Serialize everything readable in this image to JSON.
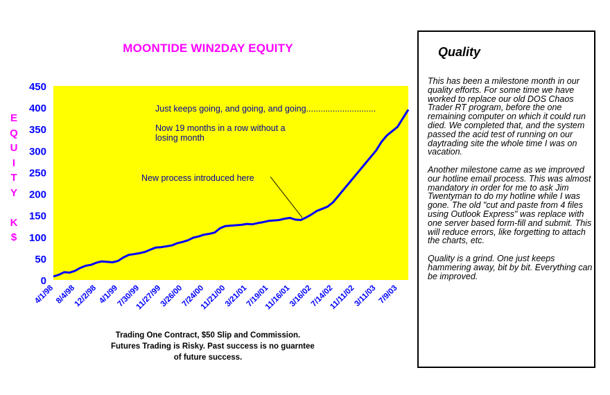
{
  "chart_data": {
    "type": "line",
    "title": "MOONTIDE WIN2DAY EQUITY",
    "ylabel": "EQUITY K$",
    "xlabel": "",
    "ylim": [
      0,
      450
    ],
    "yticks": [
      0,
      50,
      100,
      150,
      200,
      250,
      300,
      350,
      400,
      450
    ],
    "xticks": [
      "4/1/98",
      "8/4/98",
      "12/2/98",
      "4/1/99",
      "7/30/99",
      "11/27/99",
      "3/26/00",
      "7/24/00",
      "11/21/00",
      "3/21/01",
      "7/19/01",
      "11/16/01",
      "3/16/02",
      "7/14/02",
      "11/11/02",
      "3/11/03",
      "7/9/03"
    ],
    "grid": false,
    "plot_background": "#ffff00",
    "line_color": "#0000ff",
    "series": [
      {
        "x": [
          0,
          0.25,
          0.5,
          0.75,
          1,
          1.25,
          1.5,
          1.75,
          2,
          2.25,
          2.5,
          2.75,
          3,
          3.25,
          3.5,
          3.75,
          4,
          4.25,
          4.5,
          4.75,
          5,
          5.25,
          5.5,
          5.75,
          6,
          6.25,
          6.5,
          6.75,
          7,
          7.25,
          7.5,
          7.75,
          8,
          8.25,
          8.5,
          8.75,
          9,
          9.25,
          9.5,
          9.75,
          10,
          10.25,
          10.5,
          10.75,
          11,
          11.25,
          11.5,
          11.75,
          12,
          12.25,
          12.5,
          12.75,
          13,
          13.25,
          13.5,
          13.75,
          14,
          14.25,
          14.5,
          14.75,
          15,
          15.25,
          15.5,
          15.75,
          16,
          16.25,
          16.5
        ],
        "y": [
          8,
          12,
          18,
          17,
          21,
          28,
          33,
          35,
          40,
          43,
          42,
          41,
          44,
          52,
          58,
          60,
          62,
          65,
          70,
          75,
          76,
          78,
          80,
          85,
          88,
          92,
          98,
          101,
          105,
          107,
          110,
          120,
          125,
          126,
          127,
          128,
          130,
          129,
          132,
          134,
          137,
          138,
          139,
          142,
          144,
          140,
          139,
          145,
          152,
          160,
          165,
          170,
          180,
          195,
          210,
          225,
          240,
          255,
          270,
          285,
          300,
          320,
          335,
          345,
          355,
          375,
          395
        ]
      }
    ],
    "annotations": [
      "Just keeps going, and going, and going.............................",
      "Now 19 months in a row without a",
      "losing month",
      "New process introduced here"
    ]
  },
  "footnote": [
    "Trading One Contract, $50 Slip and Commission.",
    "Futures Trading is Risky. Past success is no guarntee",
    "of future success."
  ],
  "panel": {
    "heading": "Quality",
    "paragraphs": [
      "This has been a milestone month in our quality efforts. For some time we have worked to replace our old DOS Chaos Trader RT program, before the one remaining computer on which it could run died. We completed that, and the system passed the acid test of running on our daytrading site the whole time I was on vacation.",
      "Another milestone came as we improved our hotline email process. This was almost mandatory in order for me to ask Jim Twentyman to do my hotline while I was gone. The old \"cut and paste from 4 files using Outlook Express\" was replace with one server based form-fill and submit. This will reduce errors, like forgetting to attach the charts, etc.",
      "Quality is a grind. One just keeps hammering away, bit by bit. Everything can be improved."
    ]
  }
}
